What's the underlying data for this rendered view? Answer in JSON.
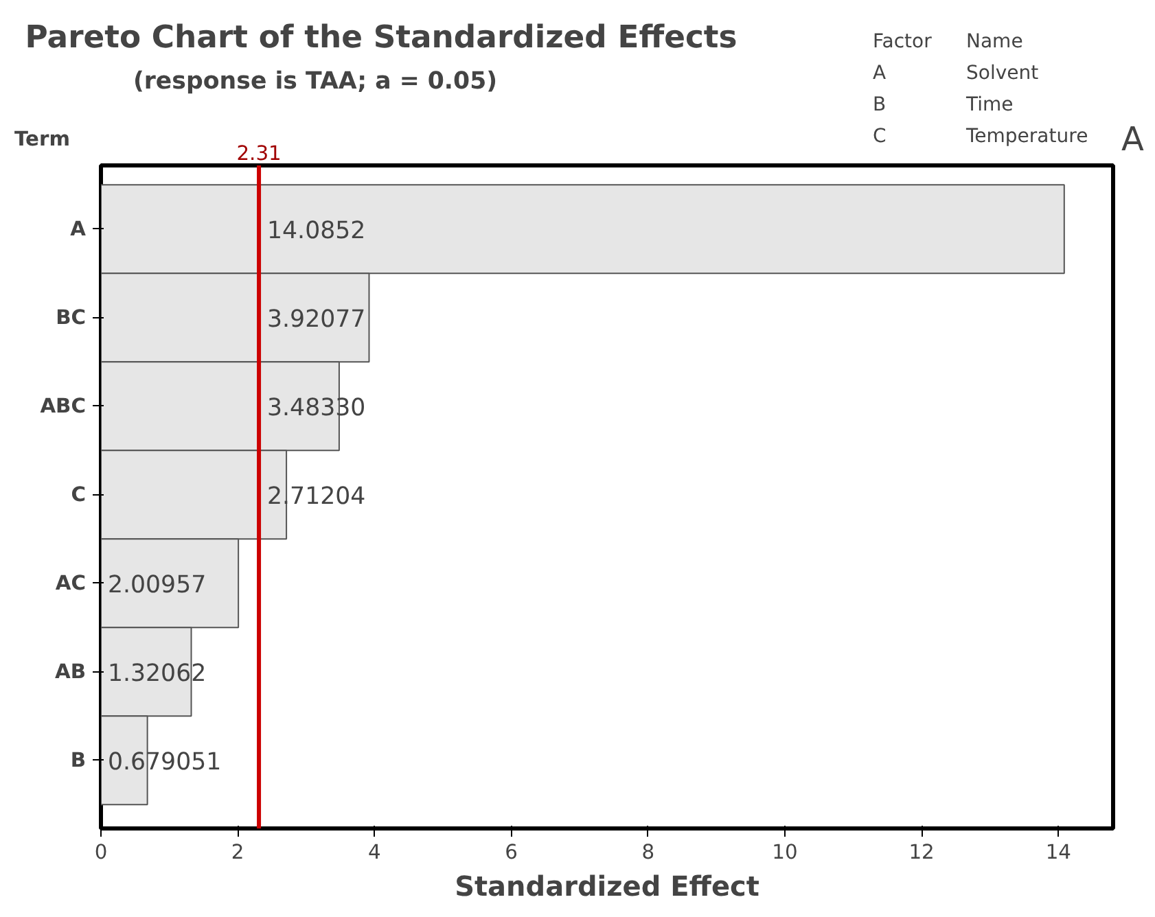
{
  "chart_data": {
    "type": "bar",
    "orientation": "horizontal",
    "title": "Pareto Chart of the Standardized Effects",
    "subtitle": "(response is TAA; a = 0.05)",
    "xlabel": "Standardized Effect",
    "ylabel": "Term",
    "categories": [
      "A",
      "BC",
      "ABC",
      "C",
      "AC",
      "AB",
      "B"
    ],
    "values": [
      14.0852,
      3.92077,
      3.4833,
      2.71204,
      2.00957,
      1.32062,
      0.679051
    ],
    "value_labels": [
      "14.0852",
      "3.92077",
      "3.48330",
      "2.71204",
      "2.00957",
      "1.32062",
      "0.679051"
    ],
    "color": "#e6e6e6",
    "xlim": [
      0,
      14.8
    ],
    "xticks": [
      0,
      2,
      4,
      6,
      8,
      10,
      12,
      14
    ],
    "grid": false,
    "ref_lines": [
      {
        "axis": "x",
        "value": 2.31,
        "label": "2.31",
        "color": "#cc0000"
      }
    ],
    "annotations": [
      "Factor",
      "Name",
      "A",
      "Solvent",
      "B",
      "Time",
      "C",
      "Temperature",
      "A"
    ]
  }
}
